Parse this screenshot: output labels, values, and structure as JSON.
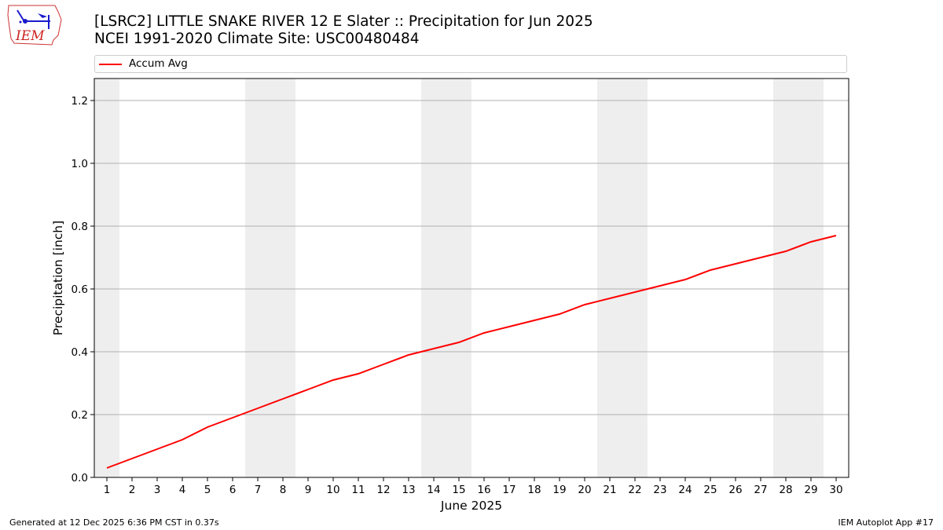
{
  "title_lines": [
    "[LSRC2] LITTLE SNAKE RIVER 12 E Slater :: Precipitation for Jun 2025",
    "NCEI 1991-2020 Climate Site: USC00480484"
  ],
  "logo_text": "IEM",
  "footer": {
    "generated": "Generated at 12 Dec 2025 6:36 PM CST in 0.37s",
    "app": "IEM Autoplot App #17"
  },
  "colors": {
    "line": "#ff0000",
    "weekend_band": "#eeeeee",
    "grid": "#b0b0b0"
  },
  "chart_data": {
    "type": "line",
    "title": "[LSRC2] LITTLE SNAKE RIVER 12 E Slater :: Precipitation for Jun 2025",
    "subtitle": "NCEI 1991-2020 Climate Site: USC00480484",
    "xlabel": "June 2025",
    "ylabel": "Precipitation [inch]",
    "x": [
      1,
      2,
      3,
      4,
      5,
      6,
      7,
      8,
      9,
      10,
      11,
      12,
      13,
      14,
      15,
      16,
      17,
      18,
      19,
      20,
      21,
      22,
      23,
      24,
      25,
      26,
      27,
      28,
      29,
      30
    ],
    "xlim": [
      0.5,
      30.5
    ],
    "ylim": [
      0,
      1.27
    ],
    "yticks": [
      0.0,
      0.2,
      0.4,
      0.6,
      0.8,
      1.0,
      1.2
    ],
    "ytick_labels": [
      "0.0",
      "0.2",
      "0.4",
      "0.6",
      "0.8",
      "1.0",
      "1.2"
    ],
    "grid": "horizontal",
    "legend_position": "top",
    "shaded_day_ranges": [
      [
        0.5,
        1.5
      ],
      [
        6.5,
        8.5
      ],
      [
        13.5,
        15.5
      ],
      [
        20.5,
        22.5
      ],
      [
        27.5,
        29.5
      ]
    ],
    "series": [
      {
        "name": "Accum Avg",
        "values": [
          0.03,
          0.06,
          0.09,
          0.12,
          0.16,
          0.19,
          0.22,
          0.25,
          0.28,
          0.31,
          0.33,
          0.36,
          0.39,
          0.41,
          0.43,
          0.46,
          0.48,
          0.5,
          0.52,
          0.55,
          0.57,
          0.59,
          0.61,
          0.63,
          0.66,
          0.68,
          0.7,
          0.72,
          0.75,
          0.77
        ]
      }
    ]
  }
}
